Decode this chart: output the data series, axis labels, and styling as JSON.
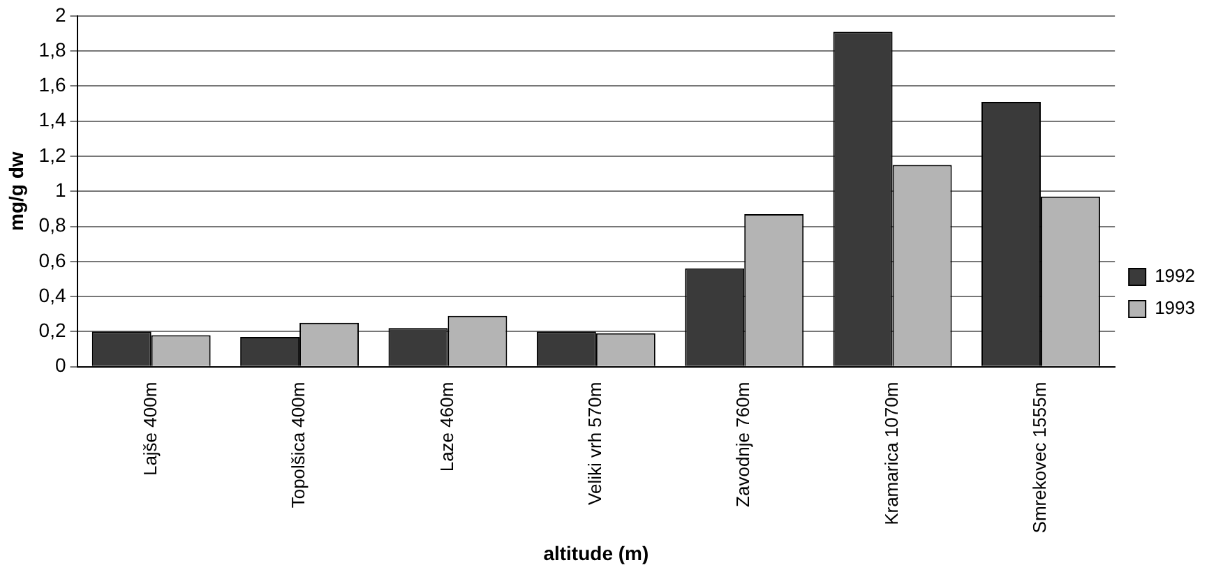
{
  "chart_data": {
    "type": "bar",
    "xlabel": "altitude (m)",
    "ylabel": "mg/g dw",
    "categories": [
      "Lajše 400m",
      "Topolšica 400m",
      "Laze 460m",
      "Veliki vrh 570m",
      "Zavodnje 760m",
      "Kramarica 1070m",
      "Smrekovec 1555m"
    ],
    "series": [
      {
        "name": "1992",
        "color": "#3a3a3a",
        "values": [
          0.2,
          0.17,
          0.22,
          0.2,
          0.56,
          1.91,
          1.51
        ]
      },
      {
        "name": "1993",
        "color": "#b4b4b4",
        "values": [
          0.18,
          0.25,
          0.29,
          0.19,
          0.87,
          1.15,
          0.97
        ]
      }
    ],
    "ylim": [
      0,
      2
    ],
    "yticks": [
      0,
      {
        "value": 0.2,
        "label": "0,2"
      },
      {
        "value": 0.4,
        "label": "0,4"
      },
      {
        "value": 0.6,
        "label": "0,6"
      },
      {
        "value": 0.8,
        "label": "0,8"
      },
      1,
      {
        "value": 1.2,
        "label": "1,2"
      },
      {
        "value": 1.4,
        "label": "1,4"
      },
      {
        "value": 1.6,
        "label": "1,6"
      },
      {
        "value": 1.8,
        "label": "1,8"
      },
      2
    ],
    "grid": "y",
    "legend": "right"
  }
}
